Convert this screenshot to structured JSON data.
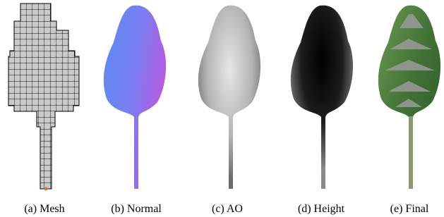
{
  "panels": [
    {
      "caption": "(a) Mesh"
    },
    {
      "caption": "(b) Normal"
    },
    {
      "caption": "(c) AO"
    },
    {
      "caption": "(d) Height"
    },
    {
      "caption": "(e) Final"
    }
  ]
}
